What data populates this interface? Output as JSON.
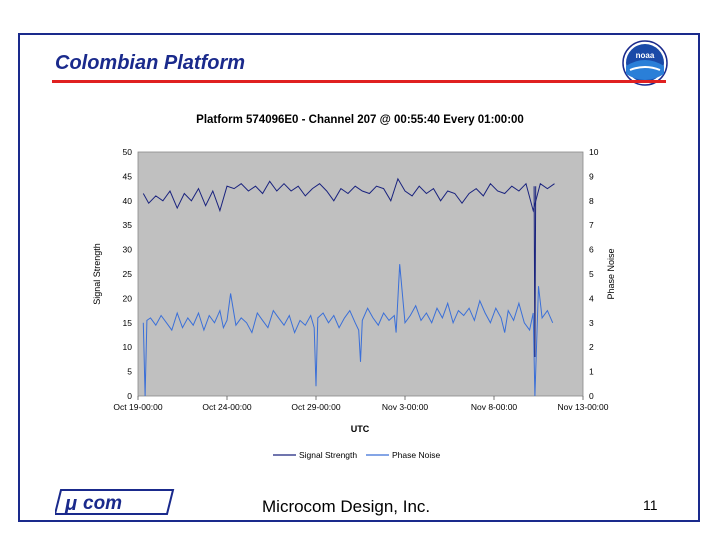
{
  "slide": {
    "title": "Colombian Platform",
    "company": "Microcom Design, Inc.",
    "page_number": "11",
    "logo_left_text": "com",
    "noaa_logo_text": "noaa",
    "accent_color": "#1a2a8c",
    "rule_color": "#e02020"
  },
  "chart_data": {
    "type": "line",
    "title": "Platform 574096E0 - Channel 207 @ 00:55:40 Every 01:00:00",
    "xlabel": "UTC",
    "ylabel_left": "Signal Strength",
    "ylabel_right": "Phase Noise",
    "x_ticks": [
      "Oct 19-00:00",
      "Oct 24-00:00",
      "Oct 29-00:00",
      "Nov 3-00:00",
      "Nov 8-00:00",
      "Nov 13-00:00"
    ],
    "x_tick_days": [
      0,
      5,
      10,
      15,
      20,
      25
    ],
    "xlim_days": [
      0,
      25
    ],
    "ylim_left": [
      0,
      50
    ],
    "ylim_right": [
      0,
      10
    ],
    "y_ticks_left": [
      "0",
      "5",
      "10",
      "15",
      "20",
      "25",
      "30",
      "35",
      "40",
      "45",
      "50"
    ],
    "y_ticks_right": [
      "0",
      "1",
      "2",
      "3",
      "4",
      "5",
      "6",
      "7",
      "8",
      "9",
      "10"
    ],
    "grid": false,
    "legend_position": "bottom",
    "plot_background": "#c0c0c0",
    "series": [
      {
        "name": "Signal Strength",
        "axis": "left",
        "color": "#1a237e",
        "x_days": [
          0.3,
          0.6,
          1.0,
          1.4,
          1.8,
          2.2,
          2.6,
          3.0,
          3.4,
          3.8,
          4.2,
          4.6,
          5.0,
          5.4,
          5.8,
          6.2,
          6.6,
          7.0,
          7.4,
          7.8,
          8.2,
          8.6,
          9.0,
          9.4,
          9.8,
          10.2,
          10.6,
          11.0,
          11.4,
          11.8,
          12.2,
          12.6,
          13.0,
          13.4,
          13.8,
          14.2,
          14.6,
          15.0,
          15.4,
          15.8,
          16.2,
          16.6,
          17.0,
          17.4,
          17.8,
          18.2,
          18.6,
          19.0,
          19.4,
          19.8,
          20.2,
          20.6,
          21.0,
          21.4,
          21.8,
          22.2,
          22.6,
          23.0,
          23.4
        ],
        "values": [
          41.5,
          39.5,
          41.0,
          40.0,
          42.0,
          38.5,
          41.5,
          40.0,
          42.5,
          39.0,
          42.0,
          38.0,
          43.0,
          42.5,
          43.5,
          42.0,
          43.0,
          41.5,
          44.0,
          42.0,
          43.5,
          42.0,
          43.0,
          41.0,
          42.5,
          43.5,
          42.0,
          40.0,
          42.5,
          41.5,
          43.0,
          42.0,
          41.5,
          43.0,
          42.5,
          40.0,
          44.5,
          42.0,
          41.0,
          43.0,
          41.5,
          42.5,
          40.0,
          42.0,
          41.5,
          39.5,
          41.5,
          42.5,
          41.0,
          43.5,
          42.0,
          41.5,
          43.0,
          42.0,
          43.5,
          38.0,
          43.5,
          42.5,
          43.5
        ]
      },
      {
        "name": "Phase Noise",
        "axis": "right",
        "color": "#3a6fd8",
        "x_days": [
          0.3,
          0.4,
          0.5,
          0.7,
          1.0,
          1.3,
          1.6,
          1.9,
          2.2,
          2.5,
          2.8,
          3.1,
          3.4,
          3.7,
          4.0,
          4.3,
          4.6,
          4.8,
          5.0,
          5.2,
          5.5,
          5.8,
          6.1,
          6.4,
          6.7,
          7.0,
          7.3,
          7.6,
          7.9,
          8.2,
          8.5,
          8.8,
          9.1,
          9.4,
          9.7,
          9.9,
          10.0,
          10.1,
          10.4,
          10.7,
          11.0,
          11.3,
          11.6,
          11.9,
          12.2,
          12.4,
          12.5,
          12.6,
          12.9,
          13.2,
          13.5,
          13.8,
          14.1,
          14.4,
          14.5,
          14.7,
          15.0,
          15.3,
          15.6,
          15.9,
          16.2,
          16.5,
          16.8,
          17.1,
          17.4,
          17.7,
          18.0,
          18.3,
          18.6,
          18.9,
          19.2,
          19.5,
          19.8,
          20.1,
          20.4,
          20.6,
          20.8,
          21.1,
          21.4,
          21.7,
          22.0,
          22.2,
          22.3,
          22.5,
          22.7,
          23.0,
          23.3
        ],
        "values": [
          3.0,
          0.0,
          3.1,
          3.2,
          2.9,
          3.3,
          3.0,
          2.7,
          3.4,
          2.8,
          3.2,
          2.9,
          3.4,
          2.7,
          3.3,
          3.0,
          3.5,
          2.8,
          3.1,
          4.2,
          2.9,
          3.2,
          3.0,
          2.6,
          3.4,
          3.1,
          2.8,
          3.5,
          3.2,
          2.9,
          3.3,
          2.6,
          3.1,
          2.9,
          3.3,
          2.8,
          0.4,
          3.2,
          3.4,
          3.0,
          3.3,
          2.8,
          3.2,
          3.5,
          3.0,
          2.7,
          1.4,
          3.1,
          3.6,
          3.2,
          2.9,
          3.4,
          3.1,
          3.3,
          2.6,
          5.4,
          3.0,
          3.3,
          3.7,
          3.1,
          3.4,
          3.0,
          3.6,
          3.2,
          3.8,
          3.0,
          3.5,
          3.3,
          3.6,
          3.1,
          3.9,
          3.4,
          3.0,
          3.6,
          3.2,
          2.6,
          3.5,
          3.1,
          3.8,
          3.0,
          2.7,
          3.4,
          0.0,
          4.5,
          3.2,
          3.5,
          3.0
        ]
      }
    ],
    "spikes_signal": [
      {
        "x_day": 22.3,
        "values": [
          43.0,
          8.0,
          43.0
        ]
      }
    ]
  }
}
